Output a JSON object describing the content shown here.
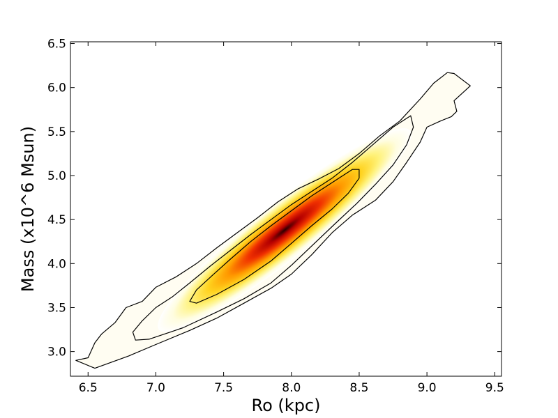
{
  "chart_data": {
    "type": "heatmap",
    "title": "",
    "xlabel": "Ro (kpc)",
    "ylabel": "Mass (x10^6 Msun)",
    "xlim": [
      6.37,
      9.55
    ],
    "ylim": [
      2.72,
      6.52
    ],
    "xticks": [
      6.5,
      7.0,
      7.5,
      8.0,
      8.5,
      9.0,
      9.5
    ],
    "xtick_labels": [
      "6.5",
      "7.0",
      "7.5",
      "8.0",
      "8.5",
      "9.0",
      "9.5"
    ],
    "yticks": [
      3.0,
      3.5,
      4.0,
      4.5,
      5.0,
      5.5,
      6.0,
      6.5
    ],
    "ytick_labels": [
      "3.0",
      "3.5",
      "4.0",
      "4.5",
      "5.0",
      "5.5",
      "6.0",
      "6.5"
    ],
    "colormap": [
      "#ffffff",
      "#fffde0",
      "#fff27a",
      "#ffd21e",
      "#ff9a00",
      "#f03000",
      "#b50000",
      "#2a0000"
    ],
    "grid": false,
    "density_peak": {
      "x": 7.95,
      "y": 4.38
    },
    "contours": [
      {
        "level": "outer",
        "points": [
          [
            6.41,
            2.9
          ],
          [
            6.5,
            2.93
          ],
          [
            6.55,
            3.1
          ],
          [
            6.6,
            3.2
          ],
          [
            6.7,
            3.33
          ],
          [
            6.78,
            3.5
          ],
          [
            6.9,
            3.57
          ],
          [
            7.0,
            3.73
          ],
          [
            7.15,
            3.85
          ],
          [
            7.3,
            4.0
          ],
          [
            7.45,
            4.18
          ],
          [
            7.6,
            4.35
          ],
          [
            7.75,
            4.52
          ],
          [
            7.9,
            4.7
          ],
          [
            8.05,
            4.85
          ],
          [
            8.2,
            4.96
          ],
          [
            8.35,
            5.08
          ],
          [
            8.5,
            5.25
          ],
          [
            8.65,
            5.45
          ],
          [
            8.8,
            5.62
          ],
          [
            8.95,
            5.87
          ],
          [
            9.05,
            6.05
          ],
          [
            9.15,
            6.17
          ],
          [
            9.2,
            6.16
          ],
          [
            9.32,
            6.02
          ],
          [
            9.2,
            5.85
          ],
          [
            9.22,
            5.73
          ],
          [
            9.18,
            5.67
          ],
          [
            9.1,
            5.62
          ],
          [
            9.0,
            5.55
          ],
          [
            8.95,
            5.38
          ],
          [
            8.85,
            5.15
          ],
          [
            8.75,
            4.93
          ],
          [
            8.62,
            4.72
          ],
          [
            8.45,
            4.55
          ],
          [
            8.3,
            4.35
          ],
          [
            8.15,
            4.1
          ],
          [
            8.0,
            3.88
          ],
          [
            7.85,
            3.72
          ],
          [
            7.65,
            3.55
          ],
          [
            7.45,
            3.38
          ],
          [
            7.25,
            3.24
          ],
          [
            7.0,
            3.08
          ],
          [
            6.8,
            2.95
          ],
          [
            6.55,
            2.81
          ],
          [
            6.41,
            2.9
          ]
        ]
      },
      {
        "level": "middle",
        "points": [
          [
            6.85,
            3.13
          ],
          [
            6.83,
            3.22
          ],
          [
            6.9,
            3.35
          ],
          [
            7.0,
            3.5
          ],
          [
            7.12,
            3.62
          ],
          [
            7.25,
            3.78
          ],
          [
            7.4,
            3.97
          ],
          [
            7.55,
            4.15
          ],
          [
            7.7,
            4.33
          ],
          [
            7.85,
            4.5
          ],
          [
            8.0,
            4.67
          ],
          [
            8.15,
            4.82
          ],
          [
            8.3,
            4.97
          ],
          [
            8.45,
            5.15
          ],
          [
            8.6,
            5.35
          ],
          [
            8.75,
            5.55
          ],
          [
            8.88,
            5.68
          ],
          [
            8.9,
            5.55
          ],
          [
            8.85,
            5.35
          ],
          [
            8.75,
            5.12
          ],
          [
            8.62,
            4.9
          ],
          [
            8.48,
            4.68
          ],
          [
            8.32,
            4.45
          ],
          [
            8.15,
            4.2
          ],
          [
            8.0,
            3.98
          ],
          [
            7.85,
            3.78
          ],
          [
            7.65,
            3.6
          ],
          [
            7.45,
            3.45
          ],
          [
            7.2,
            3.27
          ],
          [
            6.95,
            3.14
          ],
          [
            6.85,
            3.13
          ]
        ]
      },
      {
        "level": "inner",
        "points": [
          [
            7.25,
            3.57
          ],
          [
            7.3,
            3.7
          ],
          [
            7.42,
            3.87
          ],
          [
            7.55,
            4.05
          ],
          [
            7.7,
            4.25
          ],
          [
            7.85,
            4.43
          ],
          [
            8.0,
            4.6
          ],
          [
            8.15,
            4.77
          ],
          [
            8.3,
            4.92
          ],
          [
            8.45,
            5.07
          ],
          [
            8.5,
            5.07
          ],
          [
            8.5,
            4.97
          ],
          [
            8.42,
            4.8
          ],
          [
            8.3,
            4.62
          ],
          [
            8.15,
            4.43
          ],
          [
            8.0,
            4.23
          ],
          [
            7.85,
            4.03
          ],
          [
            7.65,
            3.82
          ],
          [
            7.45,
            3.65
          ],
          [
            7.3,
            3.55
          ],
          [
            7.25,
            3.57
          ]
        ]
      }
    ]
  }
}
